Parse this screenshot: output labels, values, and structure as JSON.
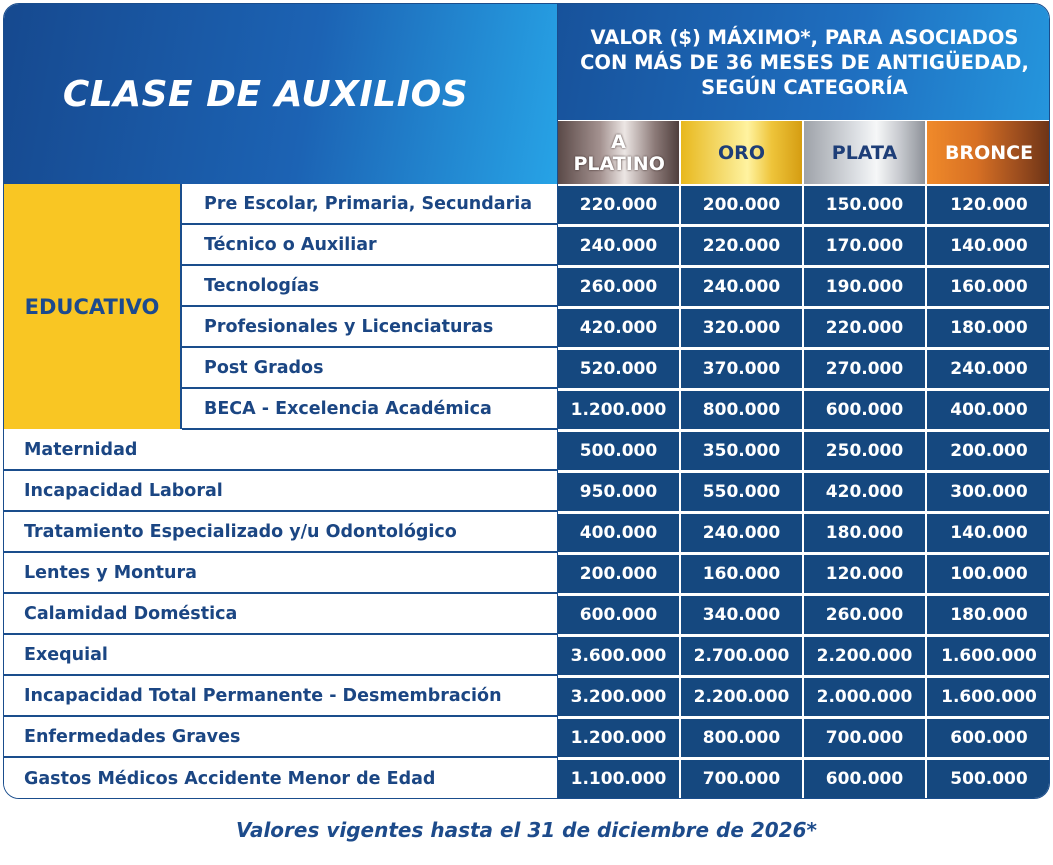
{
  "header": {
    "title": "CLASE DE AUXILIOS",
    "values_title": "VALOR ($) MÁXIMO*, PARA ASOCIADOS CON MÁS DE 36 MESES DE ANTIGÜEDAD, SEGÚN CATEGORÍA"
  },
  "categories": [
    "A PLATINO",
    "ORO",
    "PLATA",
    "BRONCE"
  ],
  "category_colors": {
    "platino": "#8c7a78",
    "oro": "#f2cf3a",
    "plata": "#d4d7dc",
    "bronce": "#c06426"
  },
  "educativo_label": "EDUCATIVO",
  "rows": [
    {
      "label": "Pre Escolar, Primaria, Secundaria",
      "values": [
        "220.000",
        "200.000",
        "150.000",
        "120.000"
      ]
    },
    {
      "label": "Técnico o Auxiliar",
      "values": [
        "240.000",
        "220.000",
        "170.000",
        "140.000"
      ]
    },
    {
      "label": "Tecnologías",
      "values": [
        "260.000",
        "240.000",
        "190.000",
        "160.000"
      ]
    },
    {
      "label": "Profesionales y Licenciaturas",
      "values": [
        "420.000",
        "320.000",
        "220.000",
        "180.000"
      ]
    },
    {
      "label": "Post Grados",
      "values": [
        "520.000",
        "370.000",
        "270.000",
        "240.000"
      ]
    },
    {
      "label": "BECA - Excelencia Académica",
      "values": [
        "1.200.000",
        "800.000",
        "600.000",
        "400.000"
      ]
    },
    {
      "label": "Maternidad",
      "values": [
        "500.000",
        "350.000",
        "250.000",
        "200.000"
      ]
    },
    {
      "label": "Incapacidad Laboral",
      "values": [
        "950.000",
        "550.000",
        "420.000",
        "300.000"
      ]
    },
    {
      "label": "Tratamiento Especializado y/u Odontológico",
      "values": [
        "400.000",
        "240.000",
        "180.000",
        "140.000"
      ]
    },
    {
      "label": "Lentes y Montura",
      "values": [
        "200.000",
        "160.000",
        "120.000",
        "100.000"
      ]
    },
    {
      "label": "Calamidad Doméstica",
      "values": [
        "600.000",
        "340.000",
        "260.000",
        "180.000"
      ]
    },
    {
      "label": "Exequial",
      "values": [
        "3.600.000",
        "2.700.000",
        "2.200.000",
        "1.600.000"
      ]
    },
    {
      "label": "Incapacidad Total Permanente - Desmembración",
      "values": [
        "3.200.000",
        "2.200.000",
        "2.000.000",
        "1.600.000"
      ]
    },
    {
      "label": "Enfermedades Graves",
      "values": [
        "1.200.000",
        "800.000",
        "700.000",
        "600.000"
      ]
    },
    {
      "label": "Gastos Médicos Accidente Menor de Edad",
      "values": [
        "1.100.000",
        "700.000",
        "600.000",
        "500.000"
      ]
    }
  ],
  "footer": "Valores vigentes hasta el 31 de diciembre de 2026*"
}
